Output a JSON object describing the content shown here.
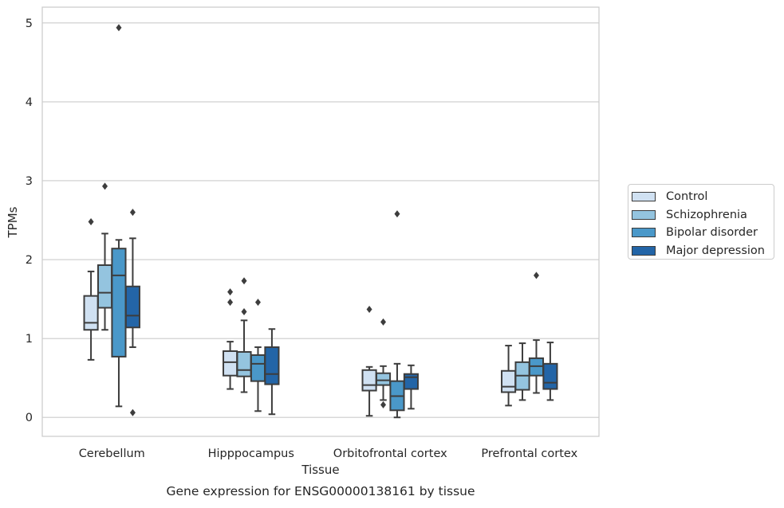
{
  "chart_data": {
    "type": "box",
    "title": "Gene expression for ENSG00000138161 by tissue",
    "xlabel": "Tissue",
    "ylabel": "TPMs",
    "ylim": [
      -0.24,
      5.2
    ],
    "yticks": [
      0,
      1,
      2,
      3,
      4,
      5
    ],
    "grid": "y",
    "legend_position": "right",
    "categories": [
      "Cerebellum",
      "Hipppocampus",
      "Orbitofrontal cortex",
      "Prefrontal cortex"
    ],
    "series": [
      {
        "name": "Control",
        "color": "#d0e1f2",
        "boxes": [
          {
            "whisker_low": 0.73,
            "q1": 1.11,
            "median": 1.2,
            "q3": 1.54,
            "whisker_high": 1.85,
            "outliers": [
              2.48
            ]
          },
          {
            "whisker_low": 0.36,
            "q1": 0.53,
            "median": 0.7,
            "q3": 0.84,
            "whisker_high": 0.96,
            "outliers": [
              1.46,
              1.59
            ]
          },
          {
            "whisker_low": 0.02,
            "q1": 0.34,
            "median": 0.41,
            "q3": 0.6,
            "whisker_high": 0.64,
            "outliers": [
              1.37
            ]
          },
          {
            "whisker_low": 0.15,
            "q1": 0.32,
            "median": 0.39,
            "q3": 0.59,
            "whisker_high": 0.91,
            "outliers": []
          }
        ]
      },
      {
        "name": "Schizophrenia",
        "color": "#94c4df",
        "boxes": [
          {
            "whisker_low": 1.11,
            "q1": 1.39,
            "median": 1.58,
            "q3": 1.93,
            "whisker_high": 2.33,
            "outliers": [
              2.93
            ]
          },
          {
            "whisker_low": 0.32,
            "q1": 0.52,
            "median": 0.6,
            "q3": 0.83,
            "whisker_high": 1.23,
            "outliers": [
              1.34,
              1.73
            ]
          },
          {
            "whisker_low": 0.22,
            "q1": 0.41,
            "median": 0.47,
            "q3": 0.56,
            "whisker_high": 0.65,
            "outliers": [
              0.16,
              1.21
            ]
          },
          {
            "whisker_low": 0.22,
            "q1": 0.35,
            "median": 0.53,
            "q3": 0.7,
            "whisker_high": 0.94,
            "outliers": []
          }
        ]
      },
      {
        "name": "Bipolar disorder",
        "color": "#4a98c9",
        "boxes": [
          {
            "whisker_low": 0.14,
            "q1": 0.77,
            "median": 1.8,
            "q3": 2.14,
            "whisker_high": 2.25,
            "outliers": [
              4.94
            ]
          },
          {
            "whisker_low": 0.08,
            "q1": 0.46,
            "median": 0.68,
            "q3": 0.79,
            "whisker_high": 0.89,
            "outliers": [
              1.46
            ]
          },
          {
            "whisker_low": 0.0,
            "q1": 0.09,
            "median": 0.27,
            "q3": 0.46,
            "whisker_high": 0.68,
            "outliers": [
              2.58
            ]
          },
          {
            "whisker_low": 0.31,
            "q1": 0.53,
            "median": 0.65,
            "q3": 0.75,
            "whisker_high": 0.98,
            "outliers": [
              1.8
            ]
          }
        ]
      },
      {
        "name": "Major depression",
        "color": "#2365a7",
        "boxes": [
          {
            "whisker_low": 0.89,
            "q1": 1.14,
            "median": 1.29,
            "q3": 1.66,
            "whisker_high": 2.27,
            "outliers": [
              2.6,
              0.06
            ]
          },
          {
            "whisker_low": 0.04,
            "q1": 0.42,
            "median": 0.55,
            "q3": 0.89,
            "whisker_high": 1.12,
            "outliers": []
          },
          {
            "whisker_low": 0.11,
            "q1": 0.36,
            "median": 0.51,
            "q3": 0.55,
            "whisker_high": 0.66,
            "outliers": []
          },
          {
            "whisker_low": 0.22,
            "q1": 0.36,
            "median": 0.44,
            "q3": 0.68,
            "whisker_high": 0.95,
            "outliers": []
          }
        ]
      }
    ]
  }
}
